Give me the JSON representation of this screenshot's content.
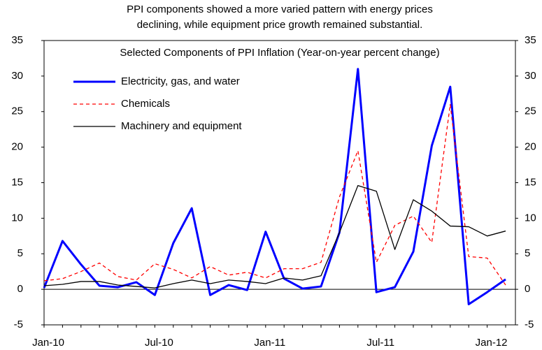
{
  "chart_data": {
    "type": "line",
    "title": [
      "PPI components showed a more varied pattern with energy prices",
      "declining, while equipment price growth remained substantial."
    ],
    "subtitle": "Selected Components of PPI Inflation (Year-on-year percent change)",
    "categories": [
      "Jan-10",
      null,
      null,
      null,
      null,
      null,
      "Jul-10",
      null,
      null,
      null,
      null,
      null,
      "Jan-11",
      null,
      null,
      null,
      null,
      null,
      "Jul-11",
      null,
      null,
      null,
      null,
      null,
      "Jan-12",
      null
    ],
    "series": [
      {
        "name": "Electricity, gas, and water",
        "color": "#0000ff",
        "width": 3,
        "values": [
          0.2,
          6.8,
          3.5,
          0.5,
          0.3,
          1.0,
          -0.8,
          6.5,
          11.4,
          -0.8,
          0.6,
          -0.1,
          8.1,
          1.5,
          0.1,
          0.4,
          8.0,
          31.0,
          -0.4,
          0.3,
          5.3,
          20.2,
          28.5,
          -2.1,
          -0.4,
          1.4
        ]
      },
      {
        "name": "Chemicals",
        "color": "#ff0000",
        "width": 1.3,
        "dash": true,
        "values": [
          1.2,
          1.5,
          2.5,
          3.7,
          1.8,
          1.3,
          3.6,
          2.8,
          1.6,
          3.2,
          2.0,
          2.4,
          1.6,
          2.9,
          2.9,
          3.8,
          13.0,
          19.5,
          3.8,
          9.0,
          10.3,
          6.6,
          26.0,
          4.6,
          4.4,
          0.6
        ]
      },
      {
        "name": "Machinery and equipment",
        "color": "#000000",
        "width": 1.3,
        "values": [
          0.5,
          0.7,
          1.1,
          1.1,
          0.6,
          0.4,
          0.2,
          0.8,
          1.3,
          0.8,
          1.3,
          1.1,
          0.8,
          1.6,
          1.3,
          1.9,
          8.0,
          14.6,
          13.8,
          5.6,
          12.6,
          11.0,
          8.9,
          8.8,
          7.5,
          8.2
        ]
      }
    ],
    "ylim": [
      -5,
      35
    ],
    "yticks": [
      -5,
      0,
      5,
      10,
      15,
      20,
      25,
      30,
      35
    ],
    "y2lim": [
      -5,
      35
    ],
    "y2ticks": [
      -5,
      0,
      5,
      10,
      15,
      20,
      25,
      30,
      35
    ],
    "legend": "upper-left"
  }
}
